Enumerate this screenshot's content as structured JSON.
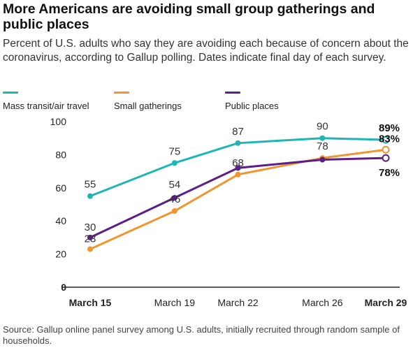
{
  "title": "More Americans are avoiding small group gatherings and public places",
  "subtitle": "Percent of U.S. adults who say they are avoiding each because of concern about the coronavirus, according to Gallup polling. Dates indicate final day of each survey.",
  "source": "Source: Gallup online panel survey among U.S. adults, initially recruited through random sample of households.",
  "chart_data": {
    "type": "line",
    "title": "More Americans are avoiding small group gatherings and public places",
    "xlabel": "",
    "ylabel": "",
    "ylim": [
      0,
      100
    ],
    "yticks": [
      0,
      20,
      40,
      60,
      80,
      100
    ],
    "categories": [
      "March 15",
      "March 19",
      "March 22",
      "March 26",
      "March 29"
    ],
    "x_days": [
      15,
      19,
      22,
      26,
      29
    ],
    "bold_categories": [
      "March 15",
      "March 29"
    ],
    "legend_position": "top",
    "grid": false,
    "series": [
      {
        "name": "Mass transit/air travel",
        "color": "#1fb5b5",
        "values": [
          55,
          75,
          87,
          90,
          89
        ],
        "labels": [
          "55",
          "75",
          "87",
          "90",
          "89%"
        ]
      },
      {
        "name": "Small gatherings",
        "color": "#f0952f",
        "values": [
          23,
          46,
          68,
          78,
          83
        ],
        "labels": [
          "23",
          "46",
          "68",
          "78",
          "83%"
        ]
      },
      {
        "name": "Public places",
        "color": "#5c1f85",
        "values": [
          30,
          54,
          72,
          77,
          78
        ],
        "labels": [
          "30",
          "54",
          "",
          "",
          "78%"
        ]
      }
    ]
  }
}
